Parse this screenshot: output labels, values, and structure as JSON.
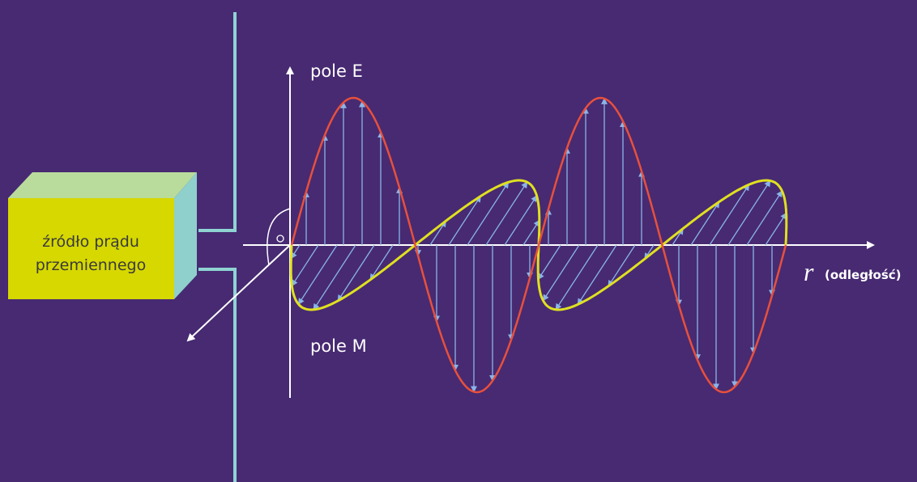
{
  "source": {
    "line1": "źródło prądu",
    "line2": "przemiennego"
  },
  "e_field_label": "pole E",
  "m_field_label": "pole M",
  "axis_label": {
    "symbol": "r",
    "text": "(odległość)"
  }
}
